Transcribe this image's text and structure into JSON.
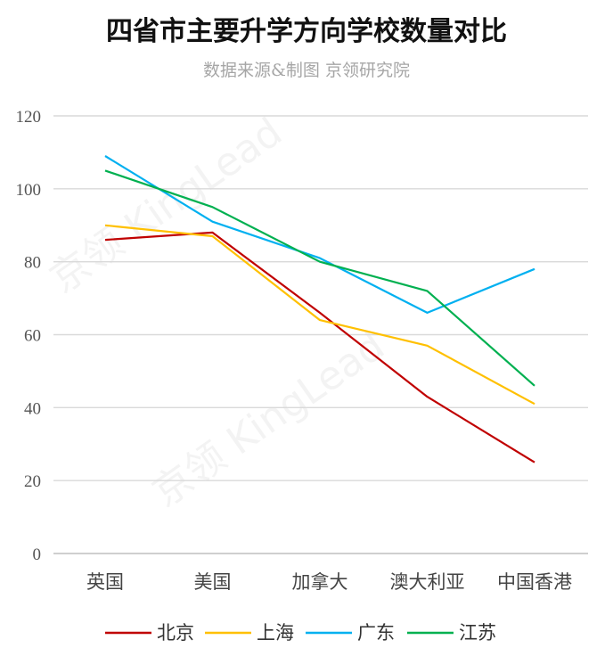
{
  "chart_data": {
    "type": "line",
    "title": "四省市主要升学方向学校数量对比",
    "subtitle": "数据来源&制图 京领研究院",
    "watermark": "京领 KingLead",
    "categories": [
      "英国",
      "美国",
      "加拿大",
      "澳大利亚",
      "中国香港"
    ],
    "ylim": [
      0,
      120
    ],
    "yticks": [
      "0",
      "20",
      "40",
      "60",
      "80",
      "100",
      "120"
    ],
    "grid": true,
    "legend_position": "bottom",
    "series": [
      {
        "name": "北京",
        "color": "#c00000",
        "values": [
          86,
          88,
          66,
          43,
          25
        ]
      },
      {
        "name": "上海",
        "color": "#ffc000",
        "values": [
          90,
          87,
          64,
          57,
          41
        ]
      },
      {
        "name": "广东",
        "color": "#00b0f0",
        "values": [
          109,
          91,
          81,
          66,
          78
        ]
      },
      {
        "name": "江苏",
        "color": "#00b050",
        "values": [
          105,
          95,
          80,
          72,
          46
        ]
      }
    ]
  }
}
